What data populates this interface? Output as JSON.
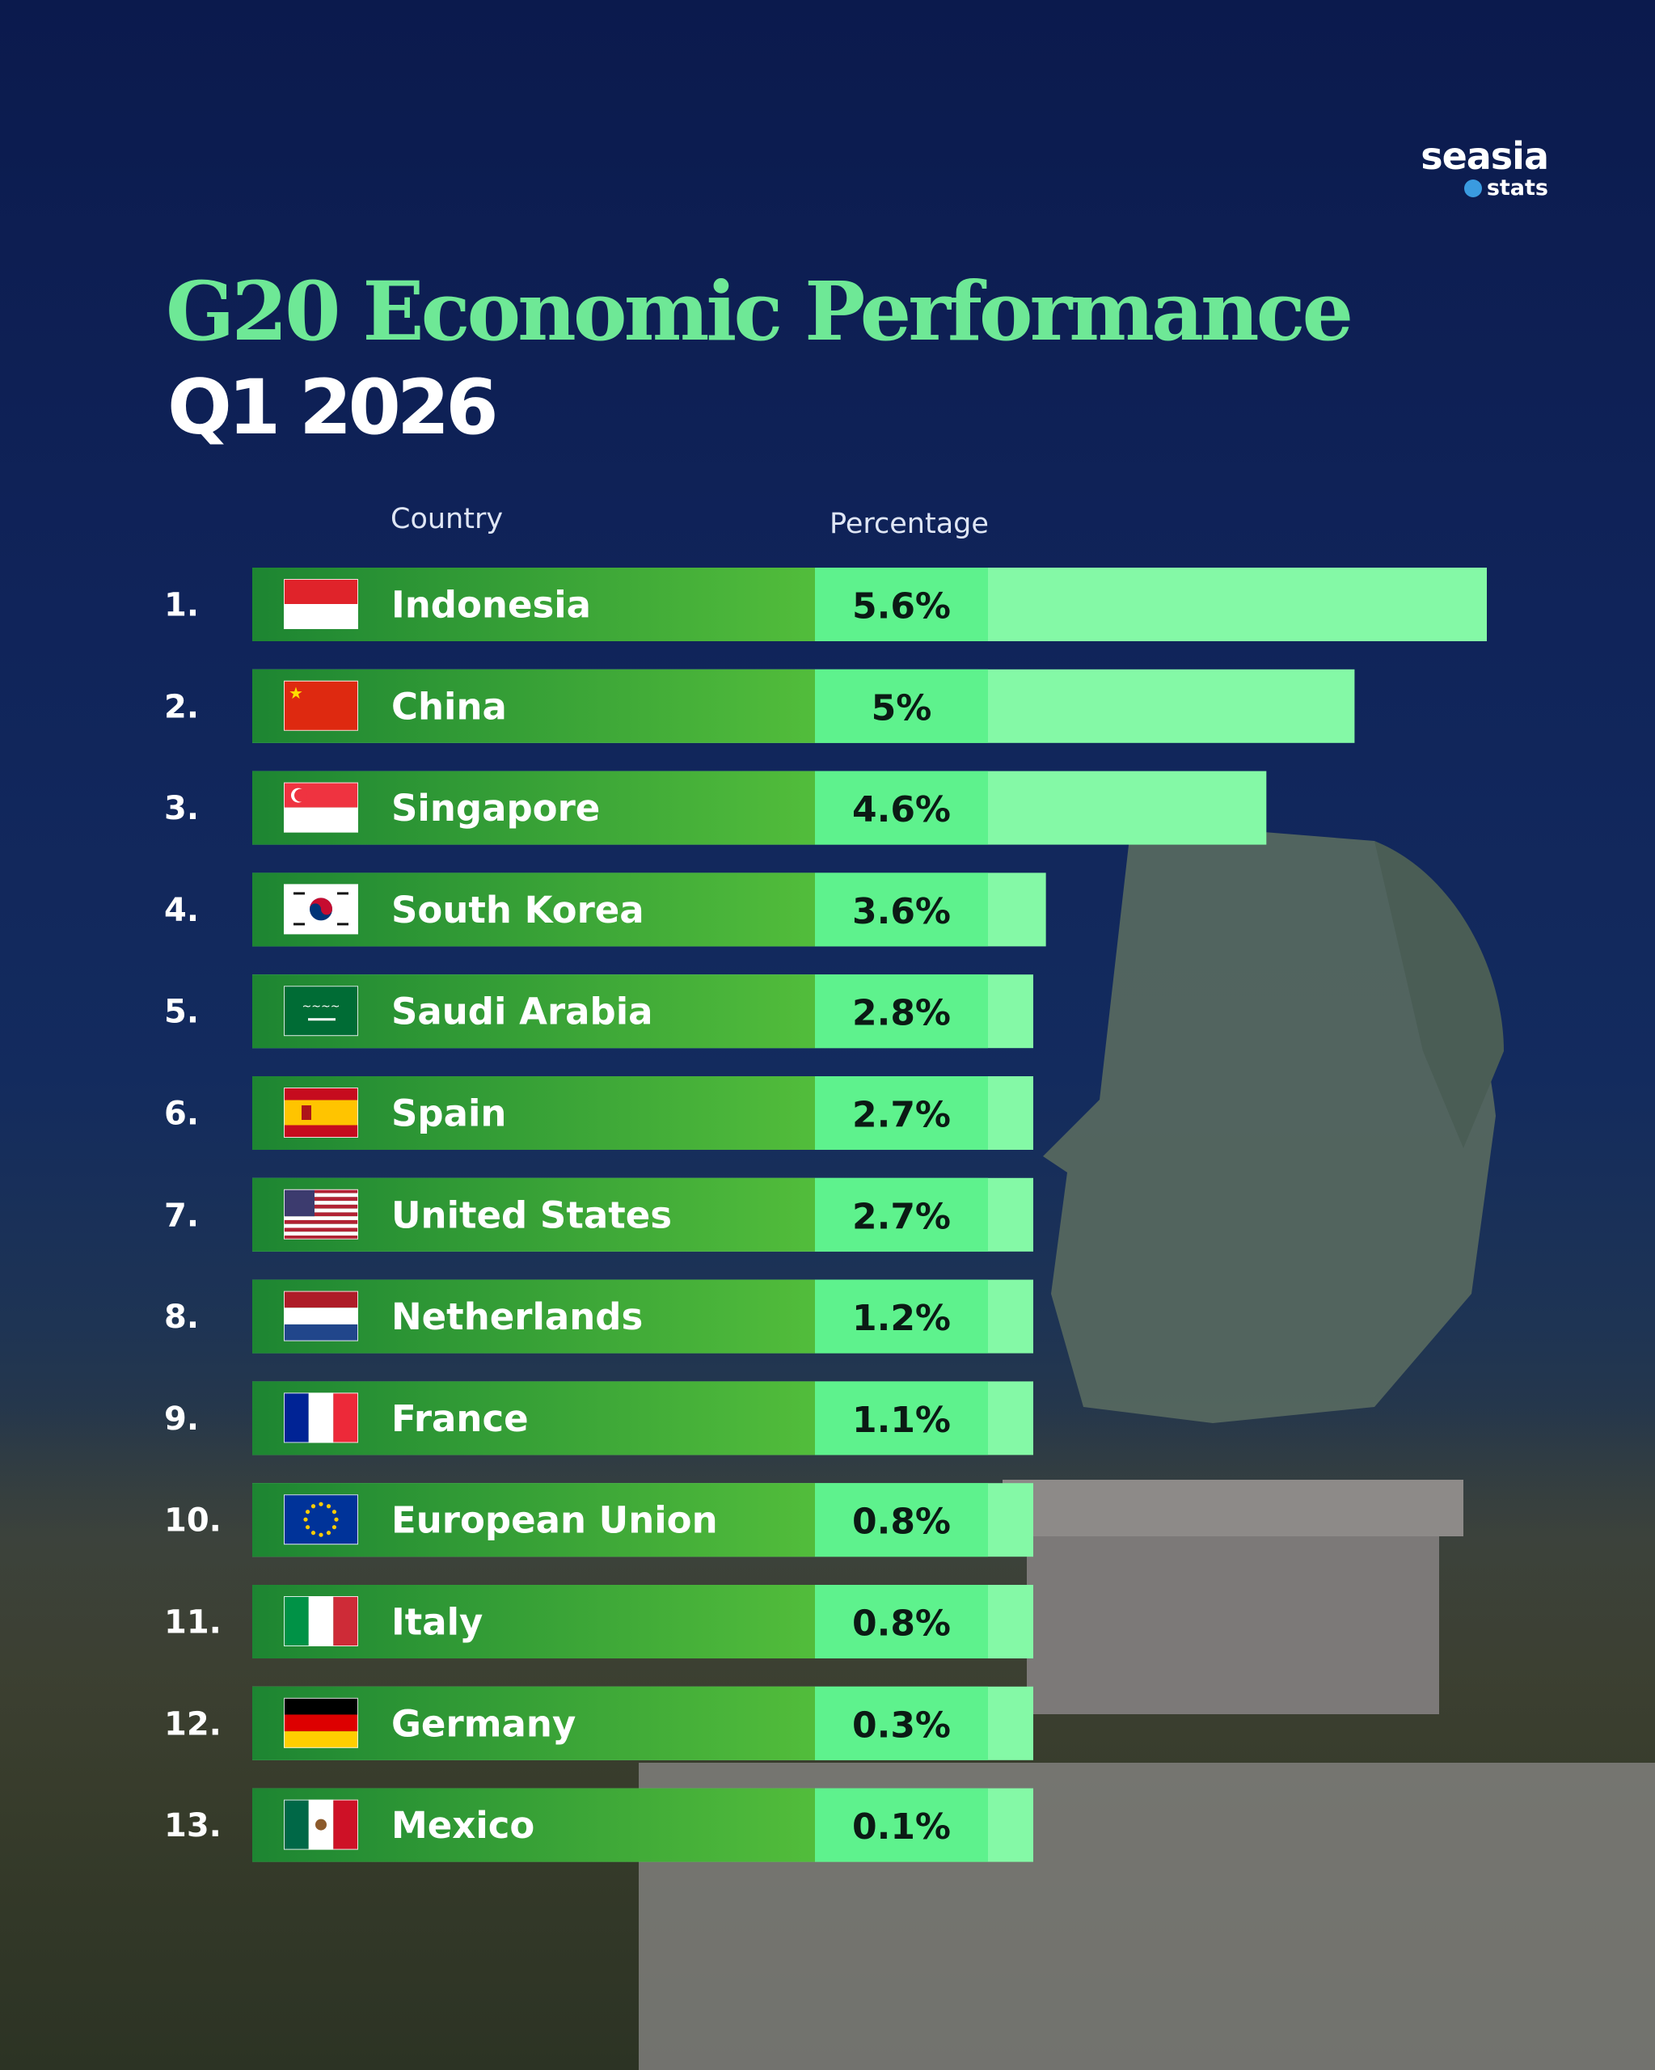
{
  "logo": {
    "main": "seasia",
    "sub": "stats",
    "dot_color": "#3a9be0"
  },
  "header": {
    "title": "G20 Economic Performance",
    "subtitle": "Q1 2026"
  },
  "columns": {
    "country": "Country",
    "percentage": "Percentage"
  },
  "colors": {
    "bar_dark": "#1f8a34",
    "bar_mid": "#4cb83a",
    "pct_box": "#5ef28d",
    "bar_light": "#84f9a6",
    "title": "#6ee896"
  },
  "chart_data": {
    "type": "bar",
    "orientation": "horizontal",
    "title": "G20 Economic Performance",
    "subtitle": "Q1 2026",
    "xlabel": "Percentage",
    "ylabel": "Country",
    "categories": [
      "Indonesia",
      "China",
      "Singapore",
      "South Korea",
      "Saudi Arabia",
      "Spain",
      "United States",
      "Netherlands",
      "France",
      "European Union",
      "Italy",
      "Germany",
      "Mexico"
    ],
    "ranks": [
      "1.",
      "2.",
      "3.",
      "4.",
      "5.",
      "6.",
      "7.",
      "8.",
      "9.",
      "10.",
      "11.",
      "12.",
      "13."
    ],
    "values": [
      5.6,
      5.0,
      4.6,
      3.6,
      2.8,
      2.7,
      2.7,
      1.2,
      1.1,
      0.8,
      0.8,
      0.3,
      0.1
    ],
    "labels": [
      "5.6%",
      "5%",
      "4.6%",
      "3.6%",
      "2.8%",
      "2.7%",
      "2.7%",
      "1.2%",
      "1.1%",
      "0.8%",
      "0.8%",
      "0.3%",
      "0.1%"
    ],
    "flags": [
      "indonesia-flag-icon",
      "china-flag-icon",
      "singapore-flag-icon",
      "south-korea-flag-icon",
      "saudi-arabia-flag-icon",
      "spain-flag-icon",
      "united-states-flag-icon",
      "netherlands-flag-icon",
      "france-flag-icon",
      "european-union-flag-icon",
      "italy-flag-icon",
      "germany-flag-icon",
      "mexico-flag-icon"
    ],
    "grid": false,
    "legend": "none"
  }
}
